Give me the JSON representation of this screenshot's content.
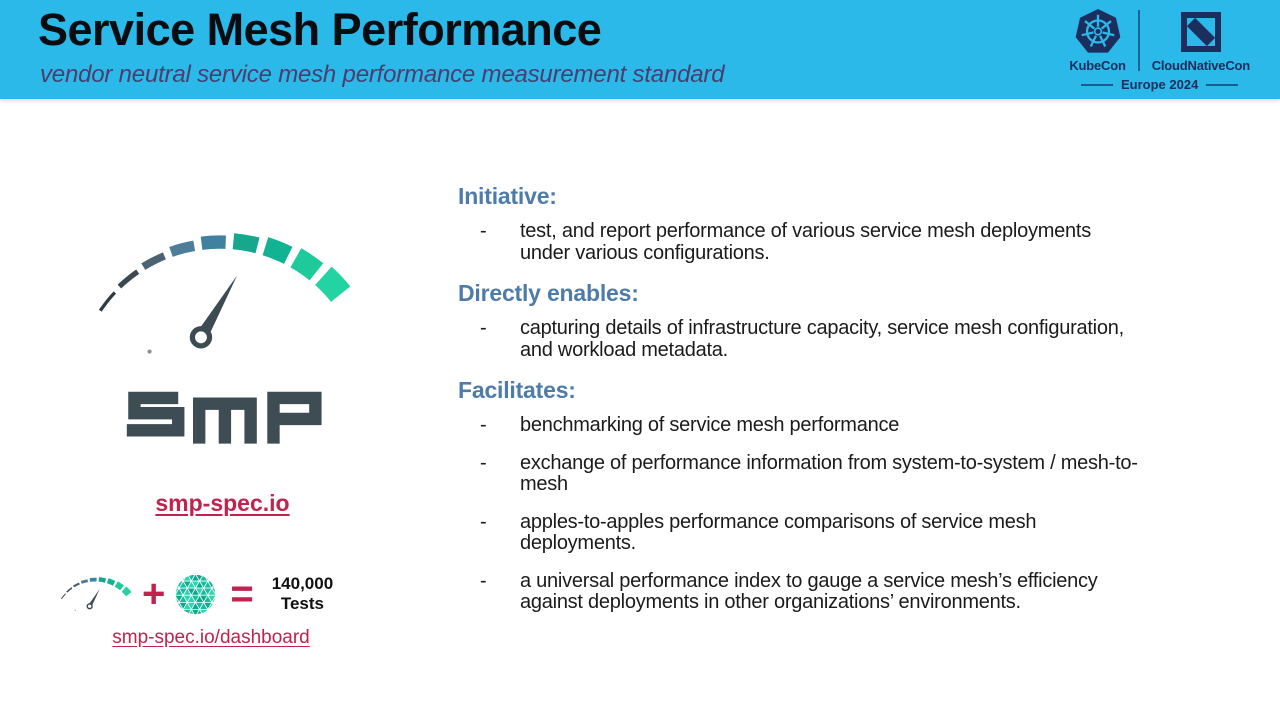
{
  "header": {
    "title": "Service Mesh Performance",
    "subtitle": "vendor neutral service mesh performance measurement standard",
    "logos": {
      "kubecon_label": "KubeCon",
      "cloudnativecon_label": "CloudNativeCon",
      "event_label": "Europe 2024"
    }
  },
  "left": {
    "logo_text": "SMP",
    "spec_link": "smp-spec.io",
    "dashboard_link": "smp-spec.io/dashboard",
    "equation": {
      "plus": "+",
      "equals": "=",
      "result_top": "140,000",
      "result_bottom": "Tests"
    }
  },
  "bullet_marker": "-",
  "sections": [
    {
      "heading": "Initiative:",
      "bullets": [
        "test, and report performance of various service mesh deployments under various configurations."
      ]
    },
    {
      "heading": "Directly enables:",
      "bullets": [
        "capturing details of infrastructure capacity, service mesh configuration, and workload metadata."
      ]
    },
    {
      "heading": "Facilitates:",
      "bullets": [
        "benchmarking of service mesh performance",
        "exchange of performance information from system-to-system / mesh-to-mesh",
        "apples-to-apples performance comparisons of service mesh deployments.",
        "a universal performance index to gauge a service mesh’s efficiency against deployments in other organizations’ environments."
      ]
    }
  ],
  "colors": {
    "header_bg": "#2ab9e9",
    "title_text": "#0b0c10",
    "subtitle_text": "#4b3e6e",
    "navy": "#1c2e5e",
    "heading_blue": "#4e7caa",
    "body_text": "#1b1b1b",
    "link_crimson": "#c1234e",
    "slate": "#3e4c54"
  },
  "smp_logo": {
    "segment_colors": [
      "#2e3b42",
      "#3b484f",
      "#4a6272",
      "#4e7d9a",
      "#3f819e",
      "#17a78d",
      "#12b392",
      "#1ec99b",
      "#23d3a1"
    ],
    "needle_color": "#3d4b53"
  },
  "meshery_icon": {
    "triangle_colors": [
      "#10a78e",
      "#2ed3b2",
      "#19bd9e"
    ],
    "line_color": "#ffffff"
  }
}
